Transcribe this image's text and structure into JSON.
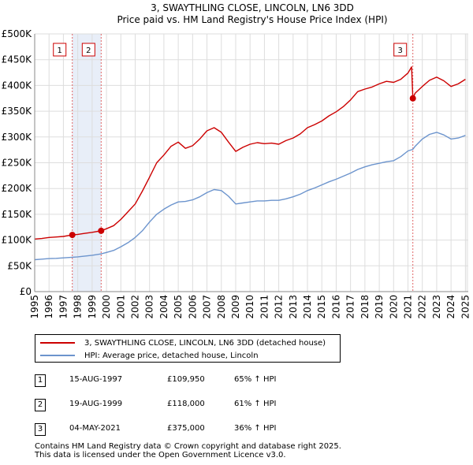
{
  "chart_data": {
    "type": "line",
    "title": "3, SWAYTHLING CLOSE, LINCOLN, LN6 3DD",
    "subtitle": "Price paid vs. HM Land Registry's House Price Index (HPI)",
    "xlim": [
      1995,
      2025.2
    ],
    "ylim": [
      0,
      500000
    ],
    "y_ticks": [
      {
        "value": 0,
        "label": "£0"
      },
      {
        "value": 50000,
        "label": "£50K"
      },
      {
        "value": 100000,
        "label": "£100K"
      },
      {
        "value": 150000,
        "label": "£150K"
      },
      {
        "value": 200000,
        "label": "£200K"
      },
      {
        "value": 250000,
        "label": "£250K"
      },
      {
        "value": 300000,
        "label": "£300K"
      },
      {
        "value": 350000,
        "label": "£350K"
      },
      {
        "value": 400000,
        "label": "£400K"
      },
      {
        "value": 450000,
        "label": "£450K"
      },
      {
        "value": 500000,
        "label": "£500K"
      }
    ],
    "x_ticks": [
      "1995",
      "1996",
      "1997",
      "1998",
      "1999",
      "2000",
      "2001",
      "2002",
      "2003",
      "2004",
      "2005",
      "2006",
      "2007",
      "2008",
      "2009",
      "2010",
      "2011",
      "2012",
      "2013",
      "2014",
      "2015",
      "2016",
      "2017",
      "2018",
      "2019",
      "2020",
      "2021",
      "2022",
      "2023",
      "2024",
      "2025"
    ],
    "series": [
      {
        "name": "3, SWAYTHLING CLOSE, LINCOLN, LN6 3DD (detached house)",
        "color": "#cc0000",
        "x": [
          1995.0,
          1995.5,
          1996.0,
          1996.5,
          1997.0,
          1997.62,
          1998.0,
          1998.5,
          1999.0,
          1999.63,
          2000.0,
          2000.5,
          2001.0,
          2001.5,
          2002.0,
          2002.5,
          2003.0,
          2003.5,
          2004.0,
          2004.5,
          2005.0,
          2005.5,
          2006.0,
          2006.5,
          2007.0,
          2007.5,
          2008.0,
          2008.5,
          2009.0,
          2009.5,
          2010.0,
          2010.5,
          2011.0,
          2011.5,
          2012.0,
          2012.5,
          2013.0,
          2013.5,
          2014.0,
          2014.5,
          2015.0,
          2015.5,
          2016.0,
          2016.5,
          2017.0,
          2017.5,
          2018.0,
          2018.5,
          2019.0,
          2019.5,
          2020.0,
          2020.5,
          2021.0,
          2021.25,
          2021.34,
          2021.5,
          2022.0,
          2022.5,
          2023.0,
          2023.5,
          2024.0,
          2024.5,
          2025.0
        ],
        "y": [
          102000,
          103000,
          105000,
          106000,
          107000,
          109950,
          111000,
          113000,
          115000,
          118000,
          122000,
          128000,
          140000,
          155000,
          170000,
          195000,
          222000,
          250000,
          265000,
          282000,
          290000,
          278000,
          283000,
          296000,
          312000,
          318000,
          309000,
          290000,
          272000,
          280000,
          286000,
          289000,
          287000,
          288000,
          286000,
          293000,
          298000,
          306000,
          318000,
          324000,
          331000,
          341000,
          349000,
          359000,
          372000,
          388000,
          393000,
          397000,
          403000,
          408000,
          406000,
          412000,
          424000,
          436000,
          375000,
          385000,
          398000,
          410000,
          416000,
          409000,
          398000,
          403000,
          412000
        ]
      },
      {
        "name": "HPI: Average price, detached house, Lincoln",
        "color": "#6c94cd",
        "x": [
          1995.0,
          1995.5,
          1996.0,
          1996.5,
          1997.0,
          1997.62,
          1998.0,
          1998.5,
          1999.0,
          1999.63,
          2000.0,
          2000.5,
          2001.0,
          2001.5,
          2002.0,
          2002.5,
          2003.0,
          2003.5,
          2004.0,
          2004.5,
          2005.0,
          2005.5,
          2006.0,
          2006.5,
          2007.0,
          2007.5,
          2008.0,
          2008.5,
          2009.0,
          2009.5,
          2010.0,
          2010.5,
          2011.0,
          2011.5,
          2012.0,
          2012.5,
          2013.0,
          2013.5,
          2014.0,
          2014.5,
          2015.0,
          2015.5,
          2016.0,
          2016.5,
          2017.0,
          2017.5,
          2018.0,
          2018.5,
          2019.0,
          2019.5,
          2020.0,
          2020.5,
          2021.0,
          2021.34,
          2021.5,
          2022.0,
          2022.5,
          2023.0,
          2023.5,
          2024.0,
          2024.5,
          2025.0
        ],
        "y": [
          62000,
          63000,
          64000,
          64500,
          65500,
          66600,
          67500,
          69000,
          70500,
          73300,
          76000,
          80000,
          87000,
          95000,
          105000,
          118000,
          135000,
          150000,
          160000,
          168000,
          174000,
          175000,
          178000,
          184000,
          192000,
          198000,
          196000,
          185000,
          170000,
          172000,
          174000,
          176000,
          176000,
          177000,
          177000,
          180000,
          184000,
          189000,
          196000,
          201000,
          207000,
          213000,
          218000,
          224000,
          230000,
          237000,
          242000,
          246000,
          249000,
          252000,
          254000,
          262000,
          273000,
          276000,
          282000,
          296000,
          305000,
          309000,
          304000,
          296000,
          298000,
          303000
        ]
      }
    ],
    "sales": [
      {
        "label": "1",
        "date": "15-AUG-1997",
        "x": 1997.62,
        "price_value": 109950,
        "price": "£109,950",
        "hpi": "65% ↑ HPI"
      },
      {
        "label": "2",
        "date": "19-AUG-1999",
        "x": 1999.63,
        "price_value": 118000,
        "price": "£118,000",
        "hpi": "61% ↑ HPI"
      },
      {
        "label": "3",
        "date": "04-MAY-2021",
        "x": 2021.34,
        "price_value": 375000,
        "price": "£375,000",
        "hpi": "36% ↑ HPI"
      }
    ],
    "shaded_period": [
      1997.62,
      1999.63
    ],
    "grid": true
  },
  "footer": {
    "line1": "Contains HM Land Registry data © Crown copyright and database right 2025.",
    "line2": "This data is licensed under the Open Government Licence v3.0."
  }
}
